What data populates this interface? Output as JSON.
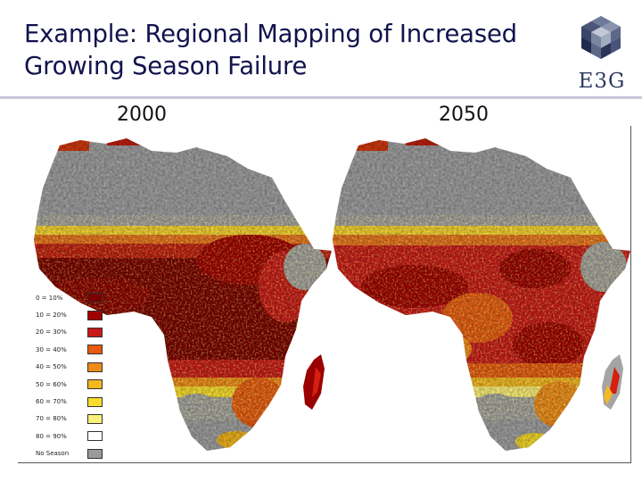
{
  "slide": {
    "title_line1": "Example: Regional Mapping of Increased",
    "title_line2": "Growing Season Failure"
  },
  "logo": {
    "text": "E3G"
  },
  "maps": [
    {
      "year": "2000"
    },
    {
      "year": "2050"
    }
  ],
  "legend": [
    {
      "label": "0 = 10%",
      "color": "#7a0000"
    },
    {
      "label": "10 = 20%",
      "color": "#a00000"
    },
    {
      "label": "20 = 30%",
      "color": "#c81818"
    },
    {
      "label": "30 = 40%",
      "color": "#e85a10"
    },
    {
      "label": "40 = 50%",
      "color": "#f08a18"
    },
    {
      "label": "50 = 60%",
      "color": "#f4b820"
    },
    {
      "label": "60 = 70%",
      "color": "#f8dc2c"
    },
    {
      "label": "70 = 80%",
      "color": "#fbf07a"
    },
    {
      "label": "80 = 90%",
      "color": "#ffffff"
    },
    {
      "label": "No Season",
      "color": "#9a9a9a"
    }
  ]
}
